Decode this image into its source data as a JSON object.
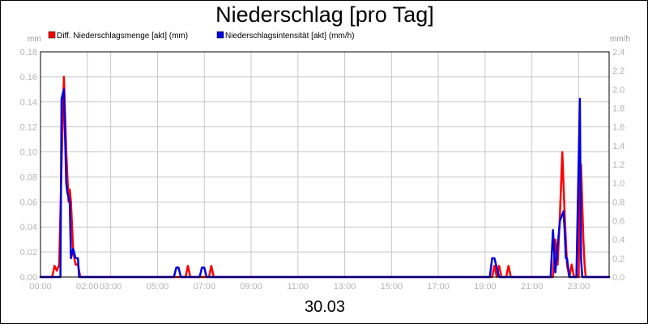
{
  "chart_data": {
    "type": "line",
    "title": "Niederschlag [pro Tag]",
    "date_label": "30.03",
    "y_left_unit": "mm",
    "y_right_unit": "mm/h",
    "y_left_range": [
      0,
      0.18
    ],
    "y_right_range": [
      0,
      2.4
    ],
    "y_left_ticks": [
      "0.00",
      "0.02",
      "0.04",
      "0.06",
      "0.08",
      "0.10",
      "0.12",
      "0.14",
      "0.16",
      "0.18"
    ],
    "y_right_ticks": [
      "0.0",
      "0.2",
      "0.4",
      "0.6",
      "0.8",
      "1.0",
      "1.2",
      "1.4",
      "1.6",
      "1.8",
      "2.0",
      "2.2",
      "2.4"
    ],
    "x_range": [
      0,
      24.3
    ],
    "x_ticks": [
      {
        "h": 0,
        "label": "00:00"
      },
      {
        "h": 2,
        "label": "02:00"
      },
      {
        "h": 3,
        "label": "03:00"
      },
      {
        "h": 5,
        "label": "05:00"
      },
      {
        "h": 7,
        "label": "07:00"
      },
      {
        "h": 9,
        "label": "09:00"
      },
      {
        "h": 11,
        "label": "11:00"
      },
      {
        "h": 13,
        "label": "13:00"
      },
      {
        "h": 15,
        "label": "15:00"
      },
      {
        "h": 17,
        "label": "17:00"
      },
      {
        "h": 19,
        "label": "19:00"
      },
      {
        "h": 21,
        "label": "21:00"
      },
      {
        "h": 23,
        "label": "23:00"
      }
    ],
    "grid": true,
    "legend_position": "top",
    "series": [
      {
        "name": "Diff. Niederschlagsmenge [akt] (mm)",
        "axis": "left",
        "color": "#ff0000",
        "points": [
          [
            0,
            0
          ],
          [
            0.5,
            0
          ],
          [
            0.6,
            0.009
          ],
          [
            0.7,
            0.005
          ],
          [
            0.8,
            0.01
          ],
          [
            0.9,
            0.09
          ],
          [
            1.0,
            0.16
          ],
          [
            1.1,
            0.1
          ],
          [
            1.2,
            0.06
          ],
          [
            1.25,
            0.07
          ],
          [
            1.3,
            0.06
          ],
          [
            1.4,
            0.02
          ],
          [
            1.5,
            0.01
          ],
          [
            1.6,
            0.01
          ],
          [
            1.7,
            0
          ],
          [
            6.2,
            0
          ],
          [
            6.3,
            0.009
          ],
          [
            6.4,
            0
          ],
          [
            7.2,
            0
          ],
          [
            7.3,
            0.009
          ],
          [
            7.4,
            0
          ],
          [
            19.3,
            0
          ],
          [
            19.4,
            0.009
          ],
          [
            19.5,
            0
          ],
          [
            19.6,
            0.009
          ],
          [
            19.7,
            0
          ],
          [
            19.9,
            0
          ],
          [
            20.0,
            0.009
          ],
          [
            20.1,
            0
          ],
          [
            21.9,
            0
          ],
          [
            22.0,
            0.03
          ],
          [
            22.1,
            0.01
          ],
          [
            22.2,
            0.05
          ],
          [
            22.3,
            0.1
          ],
          [
            22.4,
            0.05
          ],
          [
            22.5,
            0.01
          ],
          [
            22.6,
            0
          ],
          [
            22.7,
            0.01
          ],
          [
            22.8,
            0
          ],
          [
            23.0,
            0
          ],
          [
            23.05,
            0.09
          ],
          [
            23.1,
            0.09
          ],
          [
            23.2,
            0.03
          ],
          [
            23.25,
            0.01
          ],
          [
            23.3,
            0
          ],
          [
            24.3,
            0
          ]
        ]
      },
      {
        "name": "Niederschlagsintensität [akt] (mm/h)",
        "axis": "right",
        "color": "#0000e0",
        "points": [
          [
            0,
            0
          ],
          [
            0.85,
            0
          ],
          [
            0.9,
            1.9
          ],
          [
            1.0,
            2.0
          ],
          [
            1.1,
            1.0
          ],
          [
            1.15,
            0.9
          ],
          [
            1.25,
            0.8
          ],
          [
            1.3,
            0.2
          ],
          [
            1.4,
            0.3
          ],
          [
            1.5,
            0.2
          ],
          [
            1.6,
            0.2
          ],
          [
            1.65,
            0
          ],
          [
            5.7,
            0
          ],
          [
            5.8,
            0.1
          ],
          [
            5.9,
            0.1
          ],
          [
            6.0,
            0
          ],
          [
            6.8,
            0
          ],
          [
            6.9,
            0.1
          ],
          [
            7.0,
            0.1
          ],
          [
            7.1,
            0
          ],
          [
            19.2,
            0
          ],
          [
            19.3,
            0.2
          ],
          [
            19.4,
            0.2
          ],
          [
            19.5,
            0.1
          ],
          [
            19.6,
            0
          ],
          [
            21.8,
            0
          ],
          [
            21.9,
            0.5
          ],
          [
            22.0,
            0.05
          ],
          [
            22.2,
            0.6
          ],
          [
            22.35,
            0.7
          ],
          [
            22.4,
            0.5
          ],
          [
            22.45,
            0.2
          ],
          [
            22.5,
            0.2
          ],
          [
            22.6,
            0
          ],
          [
            22.9,
            0
          ],
          [
            23.05,
            1.9
          ],
          [
            23.1,
            0.2
          ],
          [
            23.15,
            0
          ],
          [
            24.3,
            0
          ]
        ]
      }
    ]
  }
}
